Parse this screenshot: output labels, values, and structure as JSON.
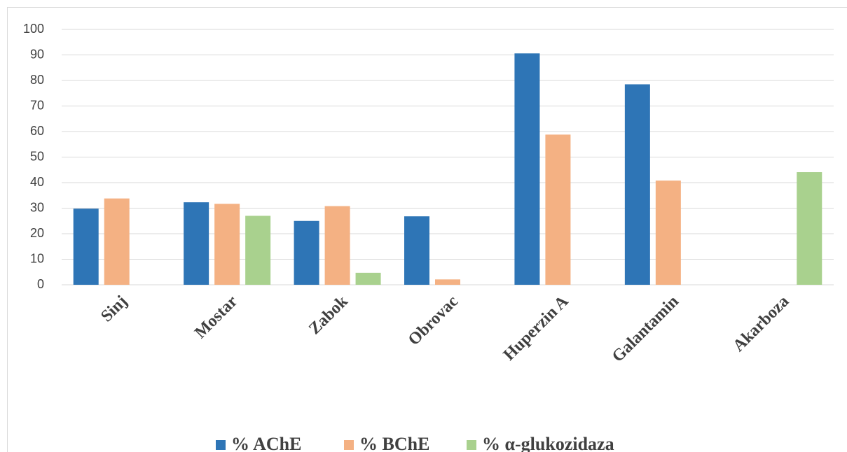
{
  "chart_data": {
    "type": "bar",
    "categories": [
      "Sinj",
      "Mostar",
      "Zabok",
      "Obrovac",
      "Huperzin A",
      "Galantamin",
      "Akarboza"
    ],
    "series": [
      {
        "name": "% AChE",
        "color": "#2e75b6",
        "values": [
          29.8,
          32.3,
          25,
          26.8,
          90.6,
          78.5,
          null
        ]
      },
      {
        "name": "% BChE",
        "color": "#f4b183",
        "values": [
          33.8,
          31.7,
          30.8,
          2.1,
          58.8,
          40.8,
          null
        ]
      },
      {
        "name": "% α-glukozidaza",
        "color": "#a9d18e",
        "values": [
          null,
          27,
          4.7,
          null,
          null,
          null,
          44.1
        ]
      }
    ],
    "ylim": [
      0,
      100
    ],
    "yticks": [
      0,
      10,
      20,
      30,
      40,
      50,
      60,
      70,
      80,
      90,
      100
    ],
    "grid": true,
    "legend": "bottom"
  }
}
